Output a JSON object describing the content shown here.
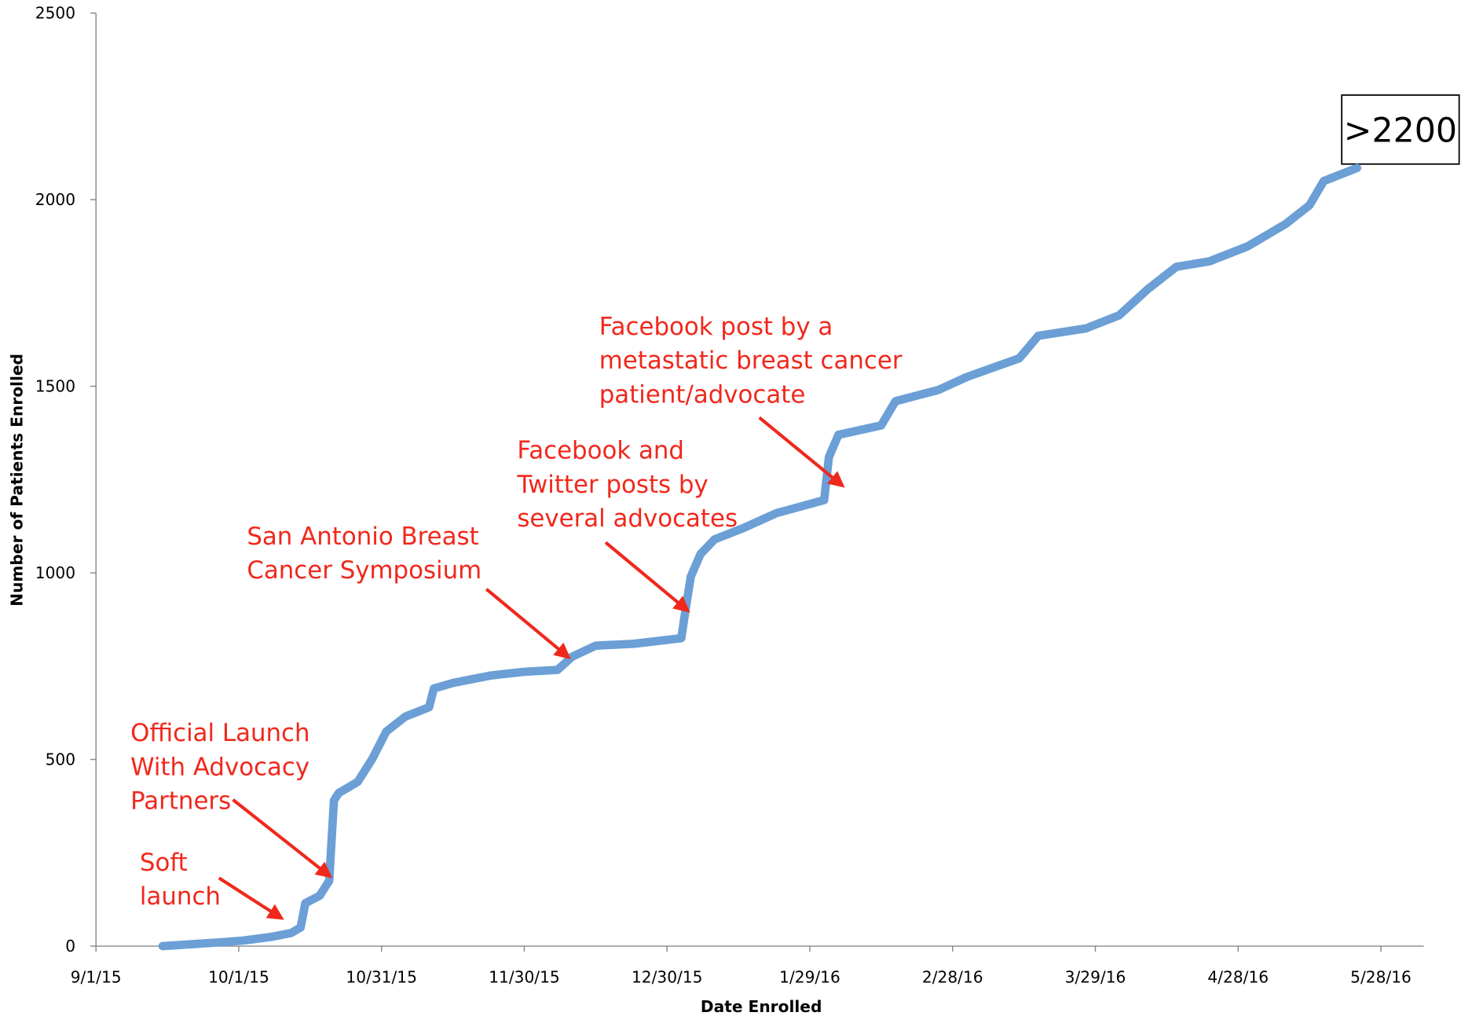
{
  "chart_data": {
    "type": "line",
    "xlabel": "Date Enrolled",
    "ylabel": "Number of Patients Enrolled",
    "x": [
      "2015-09-15",
      "2015-09-21",
      "2015-09-27",
      "2015-10-02",
      "2015-10-08",
      "2015-10-12",
      "2015-10-14",
      "2015-10-15",
      "2015-10-18",
      "2015-10-20",
      "2015-10-21",
      "2015-10-22",
      "2015-10-26",
      "2015-10-29",
      "2015-11-01",
      "2015-11-05",
      "2015-11-10",
      "2015-11-11",
      "2015-11-15",
      "2015-11-23",
      "2015-11-30",
      "2015-12-07",
      "2015-12-10",
      "2015-12-15",
      "2015-12-23",
      "2016-01-02",
      "2016-01-03",
      "2016-01-04",
      "2016-01-06",
      "2016-01-09",
      "2016-01-15",
      "2016-01-22",
      "2016-02-01",
      "2016-02-02",
      "2016-02-04",
      "2016-02-13",
      "2016-02-16",
      "2016-02-25",
      "2016-03-02",
      "2016-03-13",
      "2016-03-17",
      "2016-03-27",
      "2016-04-03",
      "2016-04-09",
      "2016-04-15",
      "2016-04-22",
      "2016-04-30",
      "2016-05-08",
      "2016-05-13",
      "2016-05-16",
      "2016-05-23"
    ],
    "series": [
      {
        "name": "Patients Enrolled",
        "color": "#6b9fd6",
        "values": [
          0,
          5,
          10,
          15,
          25,
          35,
          50,
          115,
          135,
          175,
          390,
          410,
          440,
          500,
          575,
          615,
          640,
          690,
          705,
          725,
          735,
          740,
          775,
          805,
          810,
          825,
          910,
          990,
          1050,
          1090,
          1120,
          1160,
          1195,
          1310,
          1370,
          1395,
          1460,
          1490,
          1525,
          1575,
          1635,
          1655,
          1690,
          1760,
          1820,
          1835,
          1875,
          1935,
          1985,
          2050,
          2085
        ]
      }
    ],
    "xlim": [
      "2015-09-01",
      "2016-06-06"
    ],
    "xticks": [
      {
        "value": "2015-09-01",
        "label": "9/1/15"
      },
      {
        "value": "2015-10-01",
        "label": "10/1/15"
      },
      {
        "value": "2015-10-31",
        "label": "10/31/15"
      },
      {
        "value": "2015-11-30",
        "label": "11/30/15"
      },
      {
        "value": "2015-12-30",
        "label": "12/30/15"
      },
      {
        "value": "2016-01-29",
        "label": "1/29/16"
      },
      {
        "value": "2016-02-28",
        "label": "2/28/16"
      },
      {
        "value": "2016-03-29",
        "label": "3/29/16"
      },
      {
        "value": "2016-04-28",
        "label": "4/28/16"
      },
      {
        "value": "2016-05-28",
        "label": "5/28/16"
      }
    ],
    "ylim": [
      0,
      2500
    ],
    "yticks": [
      0,
      500,
      1000,
      1500,
      2000,
      2500
    ],
    "grid": false,
    "annotations": [
      {
        "lines": [
          "Soft",
          "launch"
        ]
      },
      {
        "lines": [
          "Official Launch",
          "With Advocacy",
          "Partners"
        ]
      },
      {
        "lines": [
          "San Antonio Breast",
          "Cancer Symposium"
        ]
      },
      {
        "lines": [
          "Facebook and",
          "Twitter posts by",
          "several advocates"
        ]
      },
      {
        "lines": [
          "Facebook post by a",
          "metastatic breast cancer",
          "patient/advocate"
        ]
      }
    ],
    "annotation_color": "#f0281c",
    "callout": ">2200"
  }
}
